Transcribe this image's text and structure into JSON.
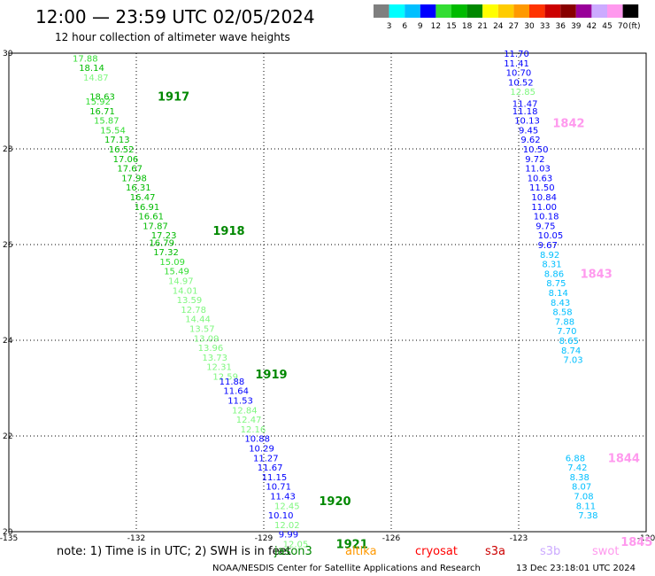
{
  "header": {
    "title": "12:00 — 23:59 UTC 02/05/2024",
    "subtitle": "12 hour collection of altimeter wave heights"
  },
  "legend": {
    "unit": "(ft)",
    "bins": [
      {
        "label": "3",
        "color": "#7f7f7f"
      },
      {
        "label": "6",
        "color": "#00ffff"
      },
      {
        "label": "9",
        "color": "#00bfff"
      },
      {
        "label": "12",
        "color": "#0000ff"
      },
      {
        "label": "15",
        "color": "#33dd33"
      },
      {
        "label": "18",
        "color": "#00bb00"
      },
      {
        "label": "21",
        "color": "#008800"
      },
      {
        "label": "24",
        "color": "#ffff00"
      },
      {
        "label": "27",
        "color": "#ffcc00"
      },
      {
        "label": "30",
        "color": "#ff9900"
      },
      {
        "label": "33",
        "color": "#ff3300"
      },
      {
        "label": "36",
        "color": "#cc0000"
      },
      {
        "label": "39",
        "color": "#880000"
      },
      {
        "label": "42",
        "color": "#990099"
      },
      {
        "label": "45",
        "color": "#ccaaff"
      },
      {
        "label": "70",
        "color": "#ff99ee"
      },
      {
        "label": "",
        "color": "#000000"
      }
    ]
  },
  "map": {
    "lon_ticks": [
      "-135",
      "-132",
      "-129",
      "-126",
      "-123",
      "-120"
    ],
    "lat_ticks": [
      "30",
      "28",
      "26",
      "24",
      "22",
      "20"
    ],
    "lon_range": [
      -135,
      -120
    ],
    "lat_range": [
      20,
      30
    ]
  },
  "chart_data": {
    "type": "scatter",
    "tracks": [
      {
        "time": "1917",
        "time_at": [
          -131.5,
          29.1
        ],
        "time_color": "#008800",
        "points": [
          {
            "v": "17.88",
            "lon": -133.5,
            "lat": 29.9,
            "c": "#33dd33"
          },
          {
            "v": "18.14",
            "lon": -133.35,
            "lat": 29.7,
            "c": "#00bb00"
          },
          {
            "v": "14.87",
            "lon": -133.25,
            "lat": 29.5,
            "c": "#7ff77f"
          },
          {
            "v": "18.63",
            "lon": -133.1,
            "lat": 29.1,
            "c": "#00bb00"
          },
          {
            "v": "15.92",
            "lon": -133.2,
            "lat": 29.0,
            "c": "#33dd33"
          },
          {
            "v": "16.71",
            "lon": -133.1,
            "lat": 28.8,
            "c": "#00bb00"
          },
          {
            "v": "15.87",
            "lon": -133.0,
            "lat": 28.6,
            "c": "#33dd33"
          },
          {
            "v": "15.54",
            "lon": -132.85,
            "lat": 28.4,
            "c": "#33dd33"
          },
          {
            "v": "17.13",
            "lon": -132.75,
            "lat": 28.2,
            "c": "#00bb00"
          },
          {
            "v": "16.52",
            "lon": -132.65,
            "lat": 28.0,
            "c": "#00bb00"
          },
          {
            "v": "17.06",
            "lon": -132.55,
            "lat": 27.8,
            "c": "#00bb00"
          },
          {
            "v": "17.67",
            "lon": -132.45,
            "lat": 27.6,
            "c": "#00bb00"
          },
          {
            "v": "17.98",
            "lon": -132.35,
            "lat": 27.4,
            "c": "#00bb00"
          },
          {
            "v": "16.31",
            "lon": -132.25,
            "lat": 27.2,
            "c": "#00bb00"
          },
          {
            "v": "16.47",
            "lon": -132.15,
            "lat": 27.0,
            "c": "#00bb00"
          },
          {
            "v": "16.91",
            "lon": -132.05,
            "lat": 26.8,
            "c": "#00bb00"
          },
          {
            "v": "16.61",
            "lon": -131.95,
            "lat": 26.6,
            "c": "#00bb00"
          },
          {
            "v": "17.87",
            "lon": -131.85,
            "lat": 26.4,
            "c": "#00bb00"
          }
        ]
      },
      {
        "time": "1918",
        "time_at": [
          -130.2,
          26.3
        ],
        "time_color": "#008800",
        "points": [
          {
            "v": "17.23",
            "lon": -131.65,
            "lat": 26.2,
            "c": "#00bb00"
          },
          {
            "v": "16.79",
            "lon": -131.7,
            "lat": 26.05,
            "c": "#00bb00"
          },
          {
            "v": "17.32",
            "lon": -131.6,
            "lat": 25.85,
            "c": "#00bb00"
          },
          {
            "v": "15.09",
            "lon": -131.45,
            "lat": 25.65,
            "c": "#33dd33"
          },
          {
            "v": "15.49",
            "lon": -131.35,
            "lat": 25.45,
            "c": "#33dd33"
          },
          {
            "v": "14.97",
            "lon": -131.25,
            "lat": 25.25,
            "c": "#7ff77f"
          },
          {
            "v": "14.01",
            "lon": -131.15,
            "lat": 25.05,
            "c": "#7ff77f"
          },
          {
            "v": "13.59",
            "lon": -131.05,
            "lat": 24.85,
            "c": "#7ff77f"
          },
          {
            "v": "12.78",
            "lon": -130.95,
            "lat": 24.65,
            "c": "#7ff77f"
          },
          {
            "v": "14.44",
            "lon": -130.85,
            "lat": 24.45,
            "c": "#7ff77f"
          },
          {
            "v": "13.57",
            "lon": -130.75,
            "lat": 24.25,
            "c": "#7ff77f"
          },
          {
            "v": "13.09",
            "lon": -130.65,
            "lat": 24.05,
            "c": "#7ff77f"
          },
          {
            "v": "13.96",
            "lon": -130.55,
            "lat": 23.85,
            "c": "#7ff77f"
          },
          {
            "v": "13.73",
            "lon": -130.45,
            "lat": 23.65,
            "c": "#7ff77f"
          },
          {
            "v": "12.31",
            "lon": -130.35,
            "lat": 23.45,
            "c": "#7ff77f"
          }
        ]
      },
      {
        "time": "1919",
        "time_at": [
          -129.2,
          23.3
        ],
        "time_color": "#008800",
        "points": [
          {
            "v": "12.59",
            "lon": -130.2,
            "lat": 23.25,
            "c": "#7ff77f"
          },
          {
            "v": "11.88",
            "lon": -130.05,
            "lat": 23.15,
            "c": "#0000ff"
          },
          {
            "v": "11.64",
            "lon": -129.95,
            "lat": 22.95,
            "c": "#0000ff"
          },
          {
            "v": "11.53",
            "lon": -129.85,
            "lat": 22.75,
            "c": "#0000ff"
          },
          {
            "v": "12.84",
            "lon": -129.75,
            "lat": 22.55,
            "c": "#7ff77f"
          },
          {
            "v": "12.47",
            "lon": -129.65,
            "lat": 22.35,
            "c": "#7ff77f"
          },
          {
            "v": "12.16",
            "lon": -129.55,
            "lat": 22.15,
            "c": "#7ff77f"
          },
          {
            "v": "10.88",
            "lon": -129.45,
            "lat": 21.95,
            "c": "#0000ff"
          },
          {
            "v": "10.29",
            "lon": -129.35,
            "lat": 21.75,
            "c": "#0000ff"
          },
          {
            "v": "11.27",
            "lon": -129.25,
            "lat": 21.55,
            "c": "#0000ff"
          },
          {
            "v": "11.67",
            "lon": -129.15,
            "lat": 21.35,
            "c": "#0000ff"
          },
          {
            "v": "11.15",
            "lon": -129.05,
            "lat": 21.15,
            "c": "#0000ff"
          },
          {
            "v": "10.71",
            "lon": -128.95,
            "lat": 20.95,
            "c": "#0000ff"
          },
          {
            "v": "11.43",
            "lon": -128.85,
            "lat": 20.75,
            "c": "#0000ff"
          },
          {
            "v": "12.45",
            "lon": -128.75,
            "lat": 20.55,
            "c": "#7ff77f"
          }
        ]
      },
      {
        "time": "1920",
        "time_at": [
          -127.7,
          20.65
        ],
        "time_color": "#008800",
        "points": [
          {
            "v": "10.10",
            "lon": -128.9,
            "lat": 20.35,
            "c": "#0000ff"
          },
          {
            "v": "12.02",
            "lon": -128.75,
            "lat": 20.15,
            "c": "#7ff77f"
          },
          {
            "v": "9.99",
            "lon": -128.65,
            "lat": 19.95,
            "c": "#0000ff"
          },
          {
            "v": "12.05",
            "lon": -128.55,
            "lat": 19.75,
            "c": "#7ff77f"
          }
        ]
      },
      {
        "time": "1921",
        "time_at": [
          -127.3,
          19.75
        ],
        "time_color": "#008800",
        "points": []
      },
      {
        "time": "1842",
        "time_at": [
          -122.2,
          28.55
        ],
        "time_color": "#ff99ee",
        "points": [
          {
            "v": "11.70",
            "lon": -123.35,
            "lat": 30.0,
            "c": "#0000ff"
          },
          {
            "v": "11.41",
            "lon": -123.35,
            "lat": 29.8,
            "c": "#0000ff"
          },
          {
            "v": "10.70",
            "lon": -123.3,
            "lat": 29.6,
            "c": "#0000ff"
          },
          {
            "v": "10.52",
            "lon": -123.25,
            "lat": 29.4,
            "c": "#0000ff"
          },
          {
            "v": "12.85",
            "lon": -123.2,
            "lat": 29.2,
            "c": "#7ff77f"
          },
          {
            "v": "11.47",
            "lon": -123.15,
            "lat": 28.95,
            "c": "#0000ff"
          },
          {
            "v": "11.18",
            "lon": -123.15,
            "lat": 28.8,
            "c": "#0000ff"
          },
          {
            "v": "10.13",
            "lon": -123.1,
            "lat": 28.6,
            "c": "#0000ff"
          }
        ]
      },
      {
        "time": "1843",
        "time_at": [
          -121.55,
          25.4
        ],
        "time_color": "#ff99ee",
        "points": [
          {
            "v": "9.45",
            "lon": -123.0,
            "lat": 28.4,
            "c": "#0000ff"
          },
          {
            "v": "9.62",
            "lon": -122.95,
            "lat": 28.2,
            "c": "#0000ff"
          },
          {
            "v": "10.50",
            "lon": -122.9,
            "lat": 28.0,
            "c": "#0000ff"
          },
          {
            "v": "9.72",
            "lon": -122.85,
            "lat": 27.8,
            "c": "#0000ff"
          },
          {
            "v": "11.03",
            "lon": -122.85,
            "lat": 27.6,
            "c": "#0000ff"
          },
          {
            "v": "10.63",
            "lon": -122.8,
            "lat": 27.4,
            "c": "#0000ff"
          },
          {
            "v": "11.50",
            "lon": -122.75,
            "lat": 27.2,
            "c": "#0000ff"
          },
          {
            "v": "10.84",
            "lon": -122.7,
            "lat": 27.0,
            "c": "#0000ff"
          },
          {
            "v": "11.00",
            "lon": -122.7,
            "lat": 26.8,
            "c": "#0000ff"
          },
          {
            "v": "10.18",
            "lon": -122.65,
            "lat": 26.6,
            "c": "#0000ff"
          },
          {
            "v": "9.75",
            "lon": -122.6,
            "lat": 26.4,
            "c": "#0000ff"
          },
          {
            "v": "10.05",
            "lon": -122.55,
            "lat": 26.2,
            "c": "#0000ff"
          },
          {
            "v": "9.67",
            "lon": -122.55,
            "lat": 26.0,
            "c": "#0000ff"
          },
          {
            "v": "8.92",
            "lon": -122.5,
            "lat": 25.8,
            "c": "#00bfff"
          },
          {
            "v": "8.31",
            "lon": -122.45,
            "lat": 25.6,
            "c": "#00bfff"
          },
          {
            "v": "8.86",
            "lon": -122.4,
            "lat": 25.4,
            "c": "#00bfff"
          },
          {
            "v": "8.75",
            "lon": -122.35,
            "lat": 25.2,
            "c": "#00bfff"
          }
        ]
      },
      {
        "time": "1844",
        "time_at": [
          -120.9,
          21.55
        ],
        "time_color": "#ff99ee",
        "points": [
          {
            "v": "8.14",
            "lon": -122.3,
            "lat": 25.0,
            "c": "#00bfff"
          },
          {
            "v": "8.43",
            "lon": -122.25,
            "lat": 24.8,
            "c": "#00bfff"
          },
          {
            "v": "8.58",
            "lon": -122.2,
            "lat": 24.6,
            "c": "#00bfff"
          },
          {
            "v": "7.88",
            "lon": -122.15,
            "lat": 24.4,
            "c": "#00bfff"
          },
          {
            "v": "7.70",
            "lon": -122.1,
            "lat": 24.2,
            "c": "#00bfff"
          },
          {
            "v": "8.65",
            "lon": -122.05,
            "lat": 24.0,
            "c": "#00bfff"
          },
          {
            "v": "8.74",
            "lon": -122.0,
            "lat": 23.8,
            "c": "#00bfff"
          },
          {
            "v": "7.03",
            "lon": -121.95,
            "lat": 23.6,
            "c": "#00bfff"
          },
          {
            "v": "6.88",
            "lon": -121.9,
            "lat": 21.55,
            "c": "#00bfff"
          }
        ]
      },
      {
        "time": "1845",
        "time_at": [
          -120.6,
          19.8
        ],
        "time_color": "#ff99ee",
        "points": [
          {
            "v": "7.42",
            "lon": -121.85,
            "lat": 21.35,
            "c": "#00bfff"
          },
          {
            "v": "8.38",
            "lon": -121.8,
            "lat": 21.15,
            "c": "#00bfff"
          },
          {
            "v": "8.07",
            "lon": -121.75,
            "lat": 20.95,
            "c": "#00bfff"
          },
          {
            "v": "7.08",
            "lon": -121.7,
            "lat": 20.75,
            "c": "#00bfff"
          },
          {
            "v": "8.11",
            "lon": -121.65,
            "lat": 20.55,
            "c": "#00bfff"
          },
          {
            "v": "7.38",
            "lon": -121.6,
            "lat": 20.35,
            "c": "#00bfff"
          }
        ]
      }
    ]
  },
  "footer": {
    "note": "note: 1) Time is in UTC; 2) SWH is in feet",
    "satellites": [
      {
        "name": "jason3",
        "color": "#008800"
      },
      {
        "name": "altika",
        "color": "#ff9900"
      },
      {
        "name": "cryosat",
        "color": "#ff0000"
      },
      {
        "name": "s3a",
        "color": "#cc0000"
      },
      {
        "name": "s3b",
        "color": "#ccaaff"
      },
      {
        "name": "swot",
        "color": "#ff99ee"
      }
    ],
    "credit": "NOAA/NESDIS Center for Satellite Applications and Research",
    "timestamp": "13 Dec 23:18:01 UTC 2024"
  }
}
